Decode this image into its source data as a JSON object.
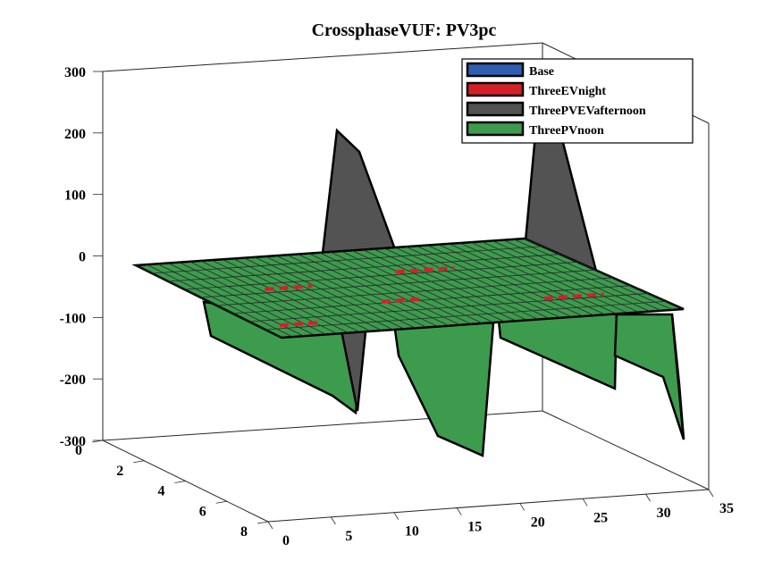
{
  "chart_data": {
    "type": "surface3d",
    "title": "CrossphaseVUF: PV3pc",
    "xlabel": "",
    "ylabel": "",
    "zlabel": "",
    "x_ticks": [
      "0",
      "5",
      "10",
      "15",
      "20",
      "25",
      "30",
      "35"
    ],
    "y_ticks": [
      "0",
      "2",
      "4",
      "6",
      "8"
    ],
    "z_ticks": [
      "300",
      "200",
      "100",
      "0",
      "-100",
      "-200",
      "-300"
    ],
    "xlim": [
      0,
      35
    ],
    "ylim": [
      0,
      8
    ],
    "zlim": [
      -300,
      300
    ],
    "legend": {
      "position": "top-right"
    },
    "series": [
      {
        "name": "Base",
        "color": "#2f5fb3",
        "surface": "flat near 0"
      },
      {
        "name": "ThreeEVnight",
        "color": "#d62027",
        "surface": "flat near 0"
      },
      {
        "name": "ThreePVEVafternoon",
        "color": "#535353",
        "peaks": [
          {
            "x": 8,
            "z": 200
          },
          {
            "x": 23,
            "z": 200
          }
        ]
      },
      {
        "name": "ThreePVnoon",
        "color": "#3d9b4e",
        "troughs": [
          {
            "x": 12,
            "z": -250
          },
          {
            "x": 27,
            "z": -270
          }
        ]
      }
    ]
  }
}
